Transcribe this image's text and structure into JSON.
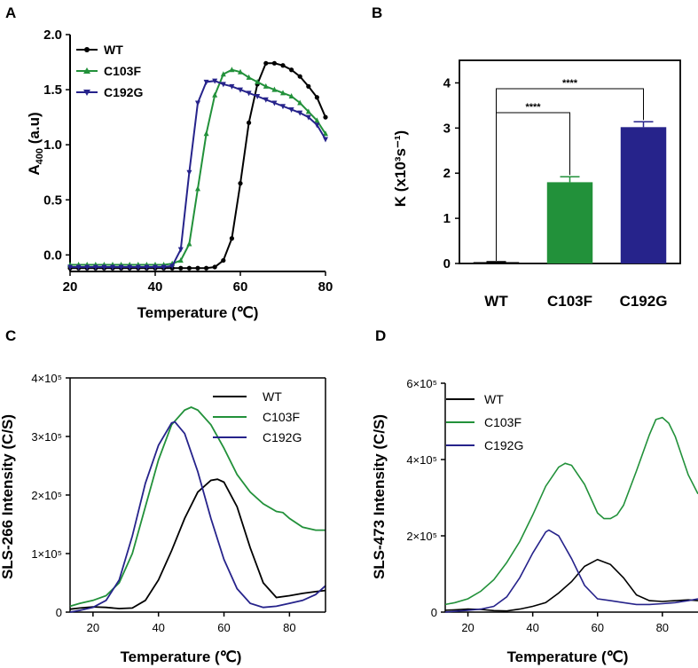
{
  "panels": {
    "A": "A",
    "B": "B",
    "C": "C",
    "D": "D"
  },
  "colors": {
    "WT": "#000000",
    "C103F": "#22913a",
    "C192G": "#26238b"
  },
  "chart_data": [
    {
      "panel": "A",
      "type": "line",
      "xlabel": "Temperature (℃)",
      "ylabel_main": "A",
      "ylabel_sub": "400",
      "ylabel_rest": " (a.u)",
      "xlim": [
        20,
        80
      ],
      "ylim": [
        -0.15,
        2.0
      ],
      "xticks": [
        20,
        40,
        60,
        80
      ],
      "yticks": [
        0.0,
        0.5,
        1.0,
        1.5,
        2.0
      ],
      "ytick_labels": [
        "0.0",
        "0.5",
        "1.0",
        "1.5",
        "2.0"
      ],
      "legend": [
        "WT",
        "C103F",
        "C192G"
      ],
      "series": [
        {
          "name": "WT",
          "x": [
            20,
            22,
            24,
            26,
            28,
            30,
            32,
            34,
            36,
            38,
            40,
            42,
            44,
            46,
            48,
            50,
            52,
            54,
            56,
            58,
            60,
            62,
            64,
            66,
            68,
            70,
            72,
            74,
            76,
            78,
            80
          ],
          "y": [
            -0.12,
            -0.12,
            -0.12,
            -0.12,
            -0.12,
            -0.12,
            -0.12,
            -0.12,
            -0.12,
            -0.12,
            -0.12,
            -0.12,
            -0.12,
            -0.12,
            -0.12,
            -0.12,
            -0.12,
            -0.11,
            -0.05,
            0.15,
            0.65,
            1.2,
            1.55,
            1.74,
            1.74,
            1.72,
            1.68,
            1.62,
            1.53,
            1.43,
            1.25
          ]
        },
        {
          "name": "C103F",
          "x": [
            20,
            22,
            24,
            26,
            28,
            30,
            32,
            34,
            36,
            38,
            40,
            42,
            44,
            46,
            48,
            50,
            52,
            54,
            56,
            58,
            60,
            62,
            64,
            66,
            68,
            70,
            72,
            74,
            76,
            78,
            80
          ],
          "y": [
            -0.09,
            -0.09,
            -0.09,
            -0.09,
            -0.09,
            -0.09,
            -0.09,
            -0.09,
            -0.09,
            -0.09,
            -0.09,
            -0.09,
            -0.08,
            -0.05,
            0.1,
            0.6,
            1.1,
            1.45,
            1.64,
            1.68,
            1.66,
            1.61,
            1.57,
            1.53,
            1.5,
            1.47,
            1.44,
            1.38,
            1.3,
            1.22,
            1.1
          ]
        },
        {
          "name": "C192G",
          "x": [
            20,
            22,
            24,
            26,
            28,
            30,
            32,
            34,
            36,
            38,
            40,
            42,
            44,
            46,
            48,
            50,
            52,
            54,
            56,
            58,
            60,
            62,
            64,
            66,
            68,
            70,
            72,
            74,
            76,
            78,
            80
          ],
          "y": [
            -0.11,
            -0.11,
            -0.11,
            -0.11,
            -0.11,
            -0.11,
            -0.11,
            -0.11,
            -0.11,
            -0.11,
            -0.11,
            -0.11,
            -0.1,
            0.05,
            0.75,
            1.38,
            1.57,
            1.58,
            1.55,
            1.53,
            1.5,
            1.47,
            1.44,
            1.41,
            1.38,
            1.35,
            1.32,
            1.29,
            1.25,
            1.18,
            1.05
          ]
        }
      ]
    },
    {
      "panel": "B",
      "type": "bar",
      "ylabel": "K (x10³s⁻¹)",
      "categories": [
        "WT",
        "C103F",
        "C192G"
      ],
      "values": [
        0.03,
        1.8,
        3.02
      ],
      "errors": [
        0.01,
        0.12,
        0.12
      ],
      "ylim": [
        0,
        4.5
      ],
      "yticks": [
        0,
        1,
        2,
        3,
        4
      ],
      "significance": [
        {
          "from": "WT",
          "to": "C103F",
          "label": "****"
        },
        {
          "from": "WT",
          "to": "C192G",
          "label": "****"
        }
      ]
    },
    {
      "panel": "C",
      "type": "line",
      "xlabel": "Temperature (℃)",
      "ylabel": "SLS-266 Intensity  (C/S)",
      "xlim": [
        13,
        91
      ],
      "ylim": [
        0,
        400000
      ],
      "xticks": [
        20,
        40,
        60,
        80
      ],
      "yticks": [
        0,
        100000,
        200000,
        300000,
        400000
      ],
      "ytick_labels": [
        "0",
        "1×10⁵",
        "2×10⁵",
        "3×10⁵",
        "4×10⁵"
      ],
      "legend": [
        "WT",
        "C103F",
        "C192G"
      ],
      "series": [
        {
          "name": "WT",
          "x": [
            13,
            16,
            20,
            24,
            28,
            32,
            36,
            40,
            44,
            48,
            52,
            56,
            58,
            60,
            64,
            68,
            72,
            76,
            80,
            84,
            88,
            91
          ],
          "y": [
            5000,
            7000,
            9000,
            8000,
            6000,
            7000,
            20000,
            55000,
            105000,
            160000,
            205000,
            225000,
            227000,
            222000,
            180000,
            110000,
            50000,
            25000,
            28000,
            32000,
            35000,
            37000
          ]
        },
        {
          "name": "C103F",
          "x": [
            13,
            16,
            20,
            24,
            28,
            32,
            36,
            40,
            44,
            48,
            50,
            52,
            56,
            60,
            64,
            68,
            72,
            76,
            78,
            80,
            84,
            88,
            91
          ],
          "y": [
            10000,
            15000,
            20000,
            28000,
            50000,
            100000,
            180000,
            260000,
            320000,
            345000,
            350000,
            345000,
            320000,
            280000,
            235000,
            205000,
            185000,
            172000,
            170000,
            160000,
            145000,
            140000,
            140000
          ]
        },
        {
          "name": "C192G",
          "x": [
            13,
            16,
            20,
            24,
            28,
            32,
            36,
            40,
            44,
            45,
            48,
            52,
            56,
            60,
            64,
            68,
            72,
            76,
            80,
            84,
            88,
            91
          ],
          "y": [
            0,
            3000,
            8000,
            20000,
            55000,
            130000,
            220000,
            285000,
            323000,
            325000,
            305000,
            240000,
            160000,
            90000,
            40000,
            15000,
            8000,
            10000,
            15000,
            20000,
            30000,
            45000
          ]
        }
      ]
    },
    {
      "panel": "D",
      "type": "line",
      "xlabel": "Temperature (℃)",
      "ylabel": "SLS-473 Intensity (C/S)",
      "xlim": [
        13,
        91
      ],
      "ylim": [
        0,
        600000
      ],
      "xticks": [
        20,
        40,
        60,
        80
      ],
      "yticks": [
        0,
        200000,
        400000,
        600000
      ],
      "ytick_labels": [
        "0",
        "2×10⁵",
        "4×10⁵",
        "6×10⁵"
      ],
      "legend": [
        "WT",
        "C103F",
        "C192G"
      ],
      "series": [
        {
          "name": "WT",
          "x": [
            13,
            16,
            20,
            24,
            28,
            32,
            36,
            40,
            44,
            48,
            52,
            56,
            60,
            64,
            68,
            72,
            76,
            80,
            84,
            88,
            91
          ],
          "y": [
            5000,
            6000,
            8000,
            7000,
            4000,
            3000,
            8000,
            15000,
            25000,
            50000,
            80000,
            120000,
            138000,
            125000,
            90000,
            45000,
            30000,
            28000,
            30000,
            32000,
            30000
          ]
        },
        {
          "name": "C103F",
          "x": [
            13,
            16,
            20,
            24,
            28,
            32,
            36,
            40,
            44,
            48,
            50,
            52,
            56,
            60,
            62,
            64,
            66,
            68,
            72,
            76,
            78,
            80,
            82,
            84,
            86,
            88,
            91
          ],
          "y": [
            20000,
            25000,
            35000,
            55000,
            85000,
            130000,
            185000,
            255000,
            330000,
            380000,
            390000,
            385000,
            335000,
            260000,
            245000,
            245000,
            255000,
            280000,
            370000,
            465000,
            505000,
            510000,
            495000,
            460000,
            410000,
            360000,
            310000
          ]
        },
        {
          "name": "C192G",
          "x": [
            13,
            16,
            20,
            24,
            28,
            32,
            36,
            40,
            44,
            45,
            48,
            52,
            56,
            60,
            64,
            68,
            72,
            76,
            80,
            84,
            88,
            91
          ],
          "y": [
            0,
            2000,
            5000,
            8000,
            15000,
            40000,
            90000,
            155000,
            210000,
            215000,
            200000,
            140000,
            70000,
            35000,
            30000,
            25000,
            20000,
            20000,
            22000,
            25000,
            30000,
            35000
          ]
        }
      ]
    }
  ]
}
